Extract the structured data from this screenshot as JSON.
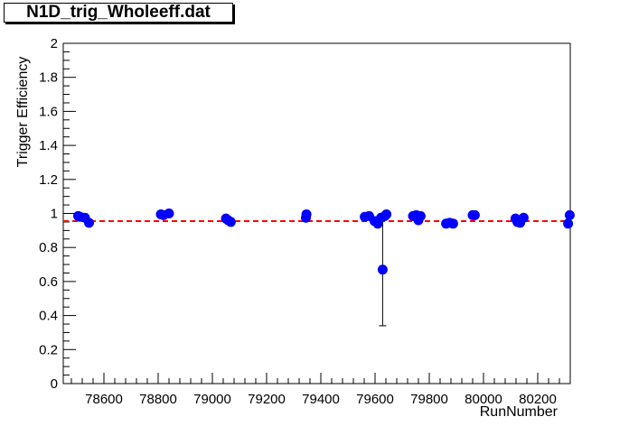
{
  "chart_data": {
    "type": "scatter",
    "title": "N1D_trig_Wholeeff.dat",
    "xlabel": "RunNumber",
    "ylabel": "Trigger Efficiency",
    "xlim": [
      78450,
      80320
    ],
    "ylim": [
      0,
      2
    ],
    "x_ticks": [
      78600,
      78800,
      79000,
      79200,
      79400,
      79600,
      79800,
      80000,
      80200
    ],
    "y_ticks": [
      0,
      0.2,
      0.4,
      0.6,
      0.8,
      1,
      1.2,
      1.4,
      1.6,
      1.8,
      2
    ],
    "y_tick_labels": [
      "0",
      "0.2",
      "0.4",
      "0.6",
      "0.8",
      "1",
      "1.2",
      "1.4",
      "1.6",
      "1.8",
      "2"
    ],
    "reference_line": {
      "y": 0.955,
      "style": "dashed",
      "color": "#ff0000"
    },
    "marker_color": "#0000ff",
    "points": [
      {
        "x": 78505,
        "y": 0.985
      },
      {
        "x": 78512,
        "y": 0.98
      },
      {
        "x": 78530,
        "y": 0.975
      },
      {
        "x": 78545,
        "y": 0.945
      },
      {
        "x": 78810,
        "y": 0.995
      },
      {
        "x": 78820,
        "y": 0.99
      },
      {
        "x": 78840,
        "y": 1.0
      },
      {
        "x": 79050,
        "y": 0.97
      },
      {
        "x": 79058,
        "y": 0.96
      },
      {
        "x": 79068,
        "y": 0.95
      },
      {
        "x": 79345,
        "y": 0.975
      },
      {
        "x": 79347,
        "y": 0.995
      },
      {
        "x": 79562,
        "y": 0.98
      },
      {
        "x": 79578,
        "y": 0.985
      },
      {
        "x": 79598,
        "y": 0.955
      },
      {
        "x": 79610,
        "y": 0.94
      },
      {
        "x": 79622,
        "y": 0.975
      },
      {
        "x": 79628,
        "y": 0.67,
        "err_low": 0.33,
        "err_high": 0.33
      },
      {
        "x": 79636,
        "y": 0.985
      },
      {
        "x": 79642,
        "y": 0.995
      },
      {
        "x": 79740,
        "y": 0.985
      },
      {
        "x": 79752,
        "y": 0.99
      },
      {
        "x": 79760,
        "y": 0.96
      },
      {
        "x": 79768,
        "y": 0.985
      },
      {
        "x": 79862,
        "y": 0.94
      },
      {
        "x": 79875,
        "y": 0.945
      },
      {
        "x": 79888,
        "y": 0.94
      },
      {
        "x": 79960,
        "y": 0.99
      },
      {
        "x": 79968,
        "y": 0.99
      },
      {
        "x": 80118,
        "y": 0.97
      },
      {
        "x": 80125,
        "y": 0.95
      },
      {
        "x": 80135,
        "y": 0.945
      },
      {
        "x": 80148,
        "y": 0.975
      },
      {
        "x": 80312,
        "y": 0.94
      },
      {
        "x": 80318,
        "y": 0.99
      }
    ]
  }
}
